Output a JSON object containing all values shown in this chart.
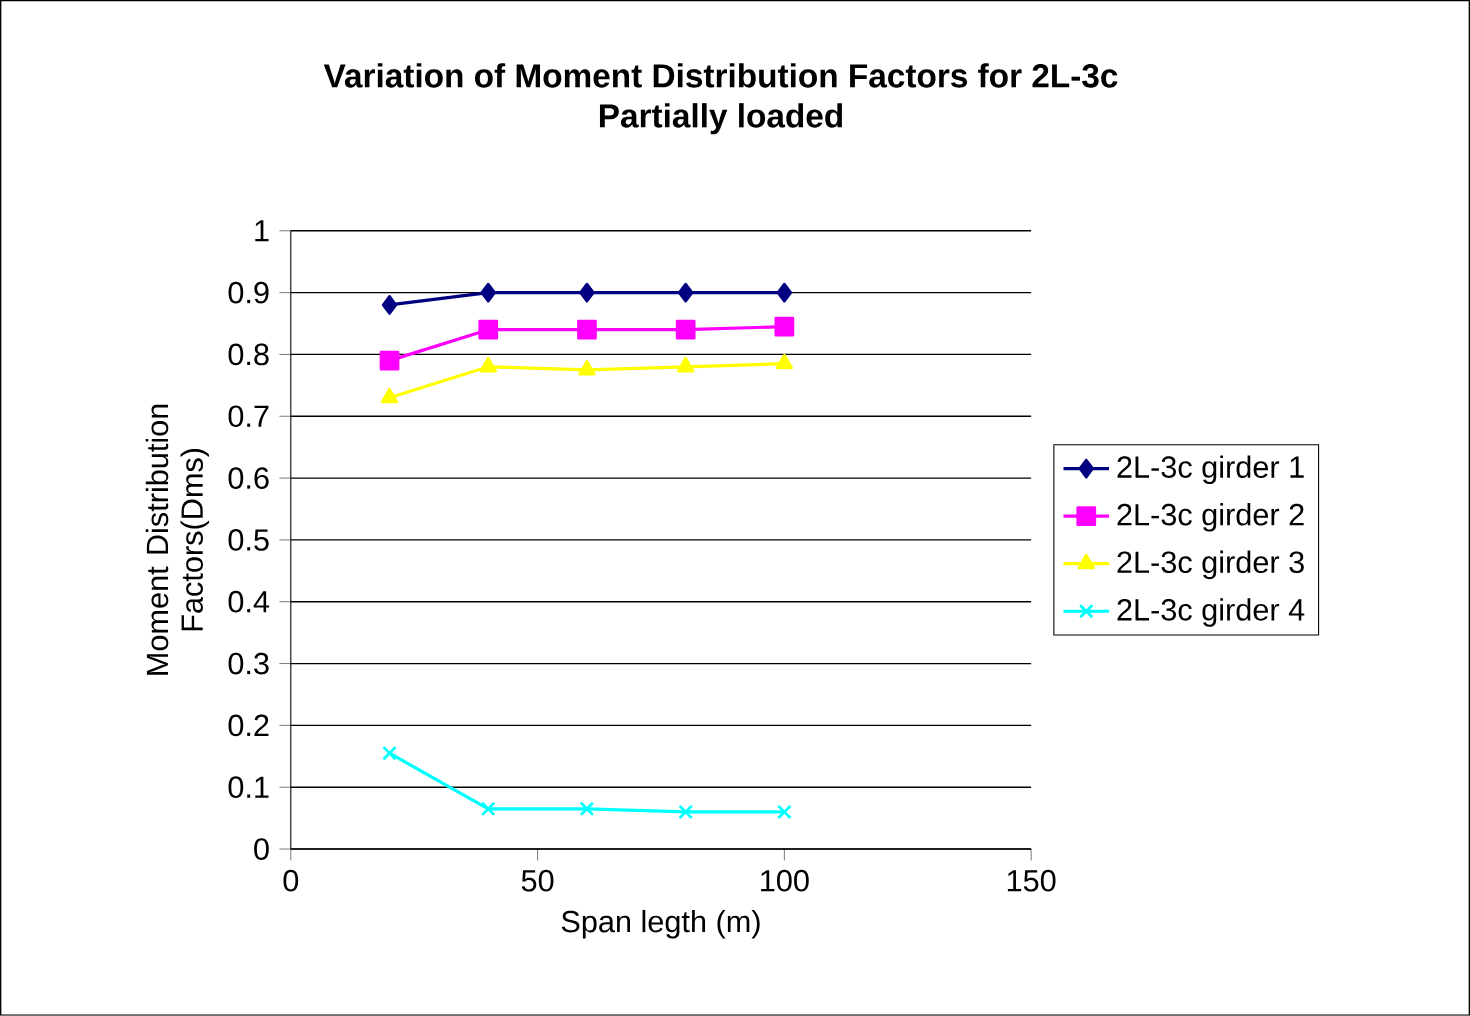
{
  "chart_data": {
    "type": "line",
    "title": "Variation of Moment Distribution Factors for 2L-3c",
    "subtitle": "Partially loaded",
    "xlabel": "Span legth (m)",
    "ylabel": "Moment Distribution Factors(Dms)",
    "x": [
      20,
      40,
      60,
      80,
      100
    ],
    "series": [
      {
        "name": "2L-3c girder 1",
        "color": "#000080",
        "marker": "diamond",
        "values": [
          0.88,
          0.9,
          0.9,
          0.9,
          0.9
        ]
      },
      {
        "name": "2L-3c girder 2",
        "color": "#ff00ff",
        "marker": "square",
        "values": [
          0.79,
          0.84,
          0.84,
          0.84,
          0.845
        ]
      },
      {
        "name": "2L-3c girder 3",
        "color": "#ffff00",
        "marker": "triangle",
        "values": [
          0.73,
          0.78,
          0.775,
          0.78,
          0.785
        ]
      },
      {
        "name": "2L-3c girder 4",
        "color": "#00ffff",
        "marker": "cross",
        "values": [
          0.155,
          0.065,
          0.065,
          0.06,
          0.06
        ]
      }
    ],
    "xlim": [
      0,
      150
    ],
    "xticks": [
      0,
      50,
      100,
      150
    ],
    "ylim": [
      0,
      1
    ],
    "yticks": [
      0,
      0.1,
      0.2,
      0.3,
      0.4,
      0.5,
      0.6,
      0.7,
      0.8,
      0.9,
      1
    ],
    "grid": "y",
    "legend": "right",
    "line_style": "solid"
  }
}
